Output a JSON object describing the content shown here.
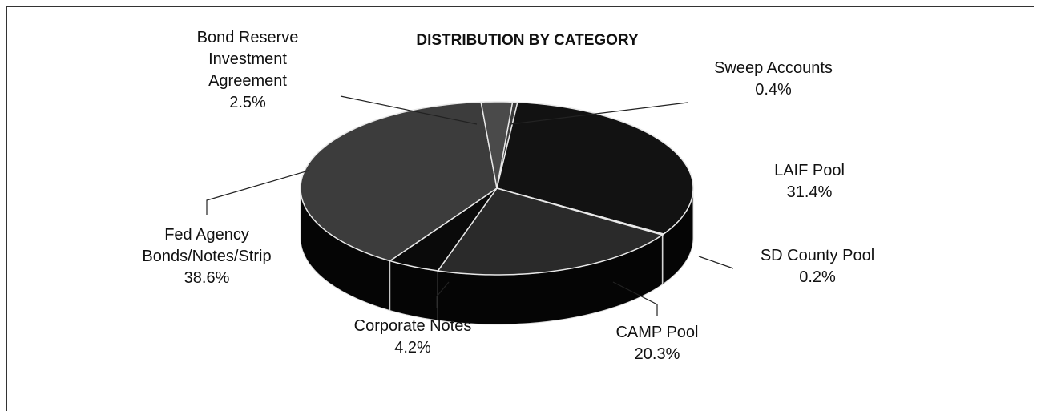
{
  "chart_data": {
    "type": "pie",
    "title": "DISTRIBUTION BY CATEGORY",
    "categories": [
      "Sweep Accounts",
      "LAIF Pool",
      "SD County Pool",
      "CAMP Pool",
      "Corporate Notes",
      "Fed Agency Bonds/Notes/Strip",
      "Bond Reserve Investment Agreement"
    ],
    "values": [
      0.4,
      31.4,
      0.2,
      20.3,
      4.2,
      38.6,
      2.5
    ],
    "value_labels": [
      "0.4%",
      "31.4%",
      "0.2%",
      "20.3%",
      "4.2%",
      "38.6%",
      "2.5%"
    ],
    "colors": [
      "#3a3a3a",
      "#121212",
      "#d0d0d0",
      "#2a2a2a",
      "#0a0a0a",
      "#3c3c3c",
      "#4a4a4a"
    ]
  }
}
